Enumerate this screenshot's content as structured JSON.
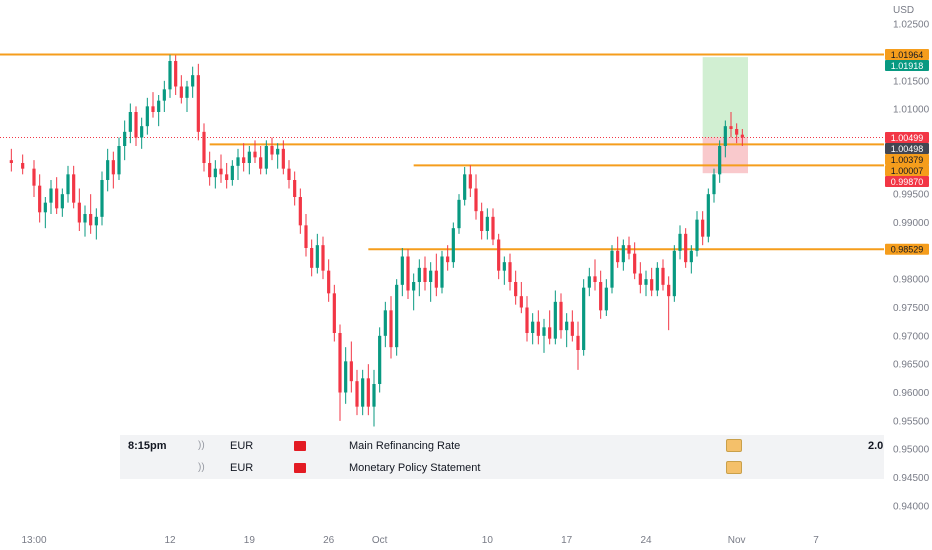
{
  "chart_data": {
    "type": "candlestick",
    "currency_label": "USD",
    "y_ticks": [
      "1.02500",
      "1.02000",
      "1.01500",
      "1.01000",
      "1.00500",
      "1.00000",
      "0.99500",
      "0.99000",
      "0.98500",
      "0.98000",
      "0.97500",
      "0.97000",
      "0.96500",
      "0.96000",
      "0.95500",
      "0.95000",
      "0.94500",
      "0.94000"
    ],
    "ylim": [
      0.9375,
      1.0275
    ],
    "x_ticks": [
      {
        "label": "13:00",
        "x": 0
      },
      {
        "label": "12",
        "x": 12
      },
      {
        "label": "19",
        "x": 19
      },
      {
        "label": "26",
        "x": 26
      },
      {
        "label": "Oct",
        "x": 30.5
      },
      {
        "label": "10",
        "x": 40
      },
      {
        "label": "17",
        "x": 47
      },
      {
        "label": "24",
        "x": 54
      },
      {
        "label": "Nov",
        "x": 62
      },
      {
        "label": "7",
        "x": 69
      }
    ],
    "xlim": [
      -3,
      75
    ],
    "horizontal_lines": [
      {
        "value": 1.01964,
        "x_start": -3,
        "color": "#f59d1c"
      },
      {
        "value": 1.00379,
        "x_start": 15.5,
        "color": "#f59d1c"
      },
      {
        "value": 1.00007,
        "x_start": 33.5,
        "color": "#f59d1c"
      },
      {
        "value": 0.98529,
        "x_start": 29.5,
        "color": "#f59d1c"
      }
    ],
    "current_price_line": {
      "value": 1.00499,
      "color": "#f23645"
    },
    "position_box": {
      "x_start": 59,
      "x_end": 63,
      "entry": 1.00499,
      "target": 1.01918,
      "stop": 0.9987
    },
    "price_tags": [
      {
        "label": "1.01964",
        "value": 1.01964,
        "bg": "#f59d1c",
        "fg": "#131722"
      },
      {
        "label": "1.01918",
        "value": 1.01918,
        "bg": "#089981",
        "fg": "#ffffff"
      },
      {
        "label": "1.00499",
        "value": 1.00499,
        "bg": "#f23645",
        "fg": "#ffffff"
      },
      {
        "label": "1.00498",
        "value": 1.00498,
        "bg": "#434651",
        "fg": "#ffffff"
      },
      {
        "label": "1.00379",
        "value": 1.00379,
        "bg": "#f59d1c",
        "fg": "#131722"
      },
      {
        "label": "1.00007",
        "value": 1.00007,
        "bg": "#f59d1c",
        "fg": "#131722"
      },
      {
        "label": "0.99870",
        "value": 0.9987,
        "bg": "#f23645",
        "fg": "#ffffff"
      },
      {
        "label": "0.98529",
        "value": 0.98529,
        "bg": "#f59d1c",
        "fg": "#131722"
      }
    ],
    "colors": {
      "up": "#089981",
      "down": "#f23645",
      "level": "#f59d1c",
      "target_zone": "#d1efd2",
      "stop_zone": "#f9c9cc"
    },
    "candles": [
      {
        "x": -2.0,
        "o": 1.001,
        "h": 1.003,
        "l": 0.999,
        "c": 1.0005
      },
      {
        "x": -1.0,
        "o": 1.0005,
        "h": 1.002,
        "l": 0.9985,
        "c": 0.9995
      },
      {
        "x": 0.0,
        "o": 0.9995,
        "h": 1.001,
        "l": 0.9945,
        "c": 0.9965
      },
      {
        "x": 0.5,
        "o": 0.9965,
        "h": 0.9985,
        "l": 0.99,
        "c": 0.9918
      },
      {
        "x": 1.0,
        "o": 0.9918,
        "h": 0.9945,
        "l": 0.989,
        "c": 0.9935
      },
      {
        "x": 1.5,
        "o": 0.9935,
        "h": 0.9975,
        "l": 0.9915,
        "c": 0.996
      },
      {
        "x": 2.0,
        "o": 0.996,
        "h": 0.998,
        "l": 0.9915,
        "c": 0.9925
      },
      {
        "x": 2.5,
        "o": 0.9925,
        "h": 0.996,
        "l": 0.991,
        "c": 0.995
      },
      {
        "x": 3.0,
        "o": 0.995,
        "h": 1.0,
        "l": 0.9935,
        "c": 0.9985
      },
      {
        "x": 3.5,
        "o": 0.9985,
        "h": 1.0,
        "l": 0.9925,
        "c": 0.9935
      },
      {
        "x": 4.0,
        "o": 0.9935,
        "h": 0.996,
        "l": 0.9885,
        "c": 0.99
      },
      {
        "x": 4.5,
        "o": 0.99,
        "h": 0.993,
        "l": 0.9875,
        "c": 0.9915
      },
      {
        "x": 5.0,
        "o": 0.9915,
        "h": 0.995,
        "l": 0.988,
        "c": 0.9895
      },
      {
        "x": 5.5,
        "o": 0.9895,
        "h": 0.9925,
        "l": 0.987,
        "c": 0.991
      },
      {
        "x": 6.0,
        "o": 0.991,
        "h": 0.999,
        "l": 0.9895,
        "c": 0.9975
      },
      {
        "x": 6.5,
        "o": 0.9975,
        "h": 1.003,
        "l": 0.9955,
        "c": 1.001
      },
      {
        "x": 7.0,
        "o": 1.001,
        "h": 1.0025,
        "l": 0.996,
        "c": 0.9985
      },
      {
        "x": 7.5,
        "o": 0.9985,
        "h": 1.005,
        "l": 0.9975,
        "c": 1.0035
      },
      {
        "x": 8.0,
        "o": 1.0035,
        "h": 1.008,
        "l": 1.001,
        "c": 1.006
      },
      {
        "x": 8.5,
        "o": 1.006,
        "h": 1.011,
        "l": 1.004,
        "c": 1.0095
      },
      {
        "x": 9.0,
        "o": 1.0095,
        "h": 1.0105,
        "l": 1.0035,
        "c": 1.005
      },
      {
        "x": 9.5,
        "o": 1.005,
        "h": 1.0085,
        "l": 1.003,
        "c": 1.007
      },
      {
        "x": 10.0,
        "o": 1.007,
        "h": 1.012,
        "l": 1.0055,
        "c": 1.0105
      },
      {
        "x": 10.5,
        "o": 1.0105,
        "h": 1.013,
        "l": 1.0085,
        "c": 1.0095
      },
      {
        "x": 11.0,
        "o": 1.0095,
        "h": 1.0125,
        "l": 1.007,
        "c": 1.0115
      },
      {
        "x": 11.5,
        "o": 1.0115,
        "h": 1.015,
        "l": 1.0095,
        "c": 1.0135
      },
      {
        "x": 12.0,
        "o": 1.0135,
        "h": 1.0196,
        "l": 1.012,
        "c": 1.0185
      },
      {
        "x": 12.5,
        "o": 1.0185,
        "h": 1.0195,
        "l": 1.0125,
        "c": 1.014
      },
      {
        "x": 13.0,
        "o": 1.014,
        "h": 1.016,
        "l": 1.011,
        "c": 1.012
      },
      {
        "x": 13.5,
        "o": 1.012,
        "h": 1.015,
        "l": 1.0095,
        "c": 1.014
      },
      {
        "x": 14.0,
        "o": 1.014,
        "h": 1.0175,
        "l": 1.012,
        "c": 1.016
      },
      {
        "x": 14.5,
        "o": 1.016,
        "h": 1.018,
        "l": 1.0045,
        "c": 1.006
      },
      {
        "x": 15.0,
        "o": 1.006,
        "h": 1.0075,
        "l": 0.999,
        "c": 1.0005
      },
      {
        "x": 15.5,
        "o": 1.0005,
        "h": 1.0025,
        "l": 0.9965,
        "c": 0.998
      },
      {
        "x": 16.0,
        "o": 0.998,
        "h": 1.001,
        "l": 0.996,
        "c": 0.9995
      },
      {
        "x": 16.5,
        "o": 0.9995,
        "h": 1.002,
        "l": 0.997,
        "c": 0.9985
      },
      {
        "x": 17.0,
        "o": 0.9985,
        "h": 1.0005,
        "l": 0.996,
        "c": 0.9975
      },
      {
        "x": 17.5,
        "o": 0.9975,
        "h": 1.001,
        "l": 0.9965,
        "c": 1.0
      },
      {
        "x": 18.0,
        "o": 1.0,
        "h": 1.003,
        "l": 0.9975,
        "c": 1.0015
      },
      {
        "x": 18.5,
        "o": 1.0015,
        "h": 1.004,
        "l": 0.999,
        "c": 1.0005
      },
      {
        "x": 19.0,
        "o": 1.0005,
        "h": 1.0035,
        "l": 0.9985,
        "c": 1.0025
      },
      {
        "x": 19.5,
        "o": 1.0025,
        "h": 1.0045,
        "l": 1.0005,
        "c": 1.0015
      },
      {
        "x": 20.0,
        "o": 1.0015,
        "h": 1.0035,
        "l": 0.9985,
        "c": 0.9995
      },
      {
        "x": 20.5,
        "o": 0.9995,
        "h": 1.0045,
        "l": 0.9985,
        "c": 1.0035
      },
      {
        "x": 21.0,
        "o": 1.0035,
        "h": 1.005,
        "l": 1.001,
        "c": 1.002
      },
      {
        "x": 21.5,
        "o": 1.002,
        "h": 1.004,
        "l": 0.9995,
        "c": 1.003
      },
      {
        "x": 22.0,
        "o": 1.003,
        "h": 1.0045,
        "l": 0.9985,
        "c": 0.9995
      },
      {
        "x": 22.5,
        "o": 0.9995,
        "h": 1.001,
        "l": 0.996,
        "c": 0.9975
      },
      {
        "x": 23.0,
        "o": 0.9975,
        "h": 0.999,
        "l": 0.993,
        "c": 0.9945
      },
      {
        "x": 23.5,
        "o": 0.9945,
        "h": 0.996,
        "l": 0.988,
        "c": 0.9895
      },
      {
        "x": 24.0,
        "o": 0.9895,
        "h": 0.9915,
        "l": 0.984,
        "c": 0.9855
      },
      {
        "x": 24.5,
        "o": 0.9855,
        "h": 0.987,
        "l": 0.9805,
        "c": 0.982
      },
      {
        "x": 25.0,
        "o": 0.982,
        "h": 0.988,
        "l": 0.981,
        "c": 0.986
      },
      {
        "x": 25.5,
        "o": 0.986,
        "h": 0.9875,
        "l": 0.98,
        "c": 0.9815
      },
      {
        "x": 26.0,
        "o": 0.9815,
        "h": 0.9835,
        "l": 0.976,
        "c": 0.9775
      },
      {
        "x": 26.5,
        "o": 0.9775,
        "h": 0.979,
        "l": 0.969,
        "c": 0.9705
      },
      {
        "x": 27.0,
        "o": 0.9705,
        "h": 0.972,
        "l": 0.955,
        "c": 0.96
      },
      {
        "x": 27.5,
        "o": 0.96,
        "h": 0.968,
        "l": 0.958,
        "c": 0.9655
      },
      {
        "x": 28.0,
        "o": 0.9655,
        "h": 0.969,
        "l": 0.96,
        "c": 0.962
      },
      {
        "x": 28.5,
        "o": 0.962,
        "h": 0.964,
        "l": 0.956,
        "c": 0.9575
      },
      {
        "x": 29.0,
        "o": 0.9575,
        "h": 0.964,
        "l": 0.956,
        "c": 0.9625
      },
      {
        "x": 29.5,
        "o": 0.9625,
        "h": 0.965,
        "l": 0.956,
        "c": 0.9575
      },
      {
        "x": 30.0,
        "o": 0.9575,
        "h": 0.964,
        "l": 0.954,
        "c": 0.9615
      },
      {
        "x": 30.5,
        "o": 0.9615,
        "h": 0.9715,
        "l": 0.96,
        "c": 0.97
      },
      {
        "x": 31.0,
        "o": 0.97,
        "h": 0.976,
        "l": 0.968,
        "c": 0.9745
      },
      {
        "x": 31.5,
        "o": 0.9745,
        "h": 0.977,
        "l": 0.966,
        "c": 0.968
      },
      {
        "x": 32.0,
        "o": 0.968,
        "h": 0.98,
        "l": 0.9665,
        "c": 0.979
      },
      {
        "x": 32.5,
        "o": 0.979,
        "h": 0.9855,
        "l": 0.977,
        "c": 0.984
      },
      {
        "x": 33.0,
        "o": 0.984,
        "h": 0.9853,
        "l": 0.9765,
        "c": 0.978
      },
      {
        "x": 33.5,
        "o": 0.978,
        "h": 0.981,
        "l": 0.9745,
        "c": 0.9795
      },
      {
        "x": 34.0,
        "o": 0.9795,
        "h": 0.9835,
        "l": 0.977,
        "c": 0.982
      },
      {
        "x": 34.5,
        "o": 0.982,
        "h": 0.984,
        "l": 0.978,
        "c": 0.9795
      },
      {
        "x": 35.0,
        "o": 0.9795,
        "h": 0.983,
        "l": 0.976,
        "c": 0.9815
      },
      {
        "x": 35.5,
        "o": 0.9815,
        "h": 0.9845,
        "l": 0.977,
        "c": 0.9785
      },
      {
        "x": 36.0,
        "o": 0.9785,
        "h": 0.985,
        "l": 0.9775,
        "c": 0.984
      },
      {
        "x": 36.5,
        "o": 0.984,
        "h": 0.986,
        "l": 0.9815,
        "c": 0.983
      },
      {
        "x": 37.0,
        "o": 0.983,
        "h": 0.99,
        "l": 0.982,
        "c": 0.989
      },
      {
        "x": 37.5,
        "o": 0.989,
        "h": 0.995,
        "l": 0.988,
        "c": 0.994
      },
      {
        "x": 38.0,
        "o": 0.994,
        "h": 0.9998,
        "l": 0.993,
        "c": 0.9985
      },
      {
        "x": 38.5,
        "o": 0.9985,
        "h": 1.0001,
        "l": 0.9945,
        "c": 0.996
      },
      {
        "x": 39.0,
        "o": 0.996,
        "h": 0.9985,
        "l": 0.9905,
        "c": 0.992
      },
      {
        "x": 39.5,
        "o": 0.992,
        "h": 0.9935,
        "l": 0.987,
        "c": 0.9885
      },
      {
        "x": 40.0,
        "o": 0.9885,
        "h": 0.9925,
        "l": 0.987,
        "c": 0.991
      },
      {
        "x": 40.5,
        "o": 0.991,
        "h": 0.9925,
        "l": 0.986,
        "c": 0.987
      },
      {
        "x": 41.0,
        "o": 0.987,
        "h": 0.988,
        "l": 0.98,
        "c": 0.9815
      },
      {
        "x": 41.5,
        "o": 0.9815,
        "h": 0.984,
        "l": 0.979,
        "c": 0.983
      },
      {
        "x": 42.0,
        "o": 0.983,
        "h": 0.9845,
        "l": 0.978,
        "c": 0.9795
      },
      {
        "x": 42.5,
        "o": 0.9795,
        "h": 0.9815,
        "l": 0.9755,
        "c": 0.977
      },
      {
        "x": 43.0,
        "o": 0.977,
        "h": 0.9795,
        "l": 0.974,
        "c": 0.975
      },
      {
        "x": 43.5,
        "o": 0.975,
        "h": 0.977,
        "l": 0.969,
        "c": 0.9705
      },
      {
        "x": 44.0,
        "o": 0.9705,
        "h": 0.974,
        "l": 0.9685,
        "c": 0.9725
      },
      {
        "x": 44.5,
        "o": 0.9725,
        "h": 0.9745,
        "l": 0.9685,
        "c": 0.97
      },
      {
        "x": 45.0,
        "o": 0.97,
        "h": 0.973,
        "l": 0.967,
        "c": 0.9715
      },
      {
        "x": 45.5,
        "o": 0.9715,
        "h": 0.9745,
        "l": 0.9685,
        "c": 0.9695
      },
      {
        "x": 46.0,
        "o": 0.9695,
        "h": 0.978,
        "l": 0.9685,
        "c": 0.976
      },
      {
        "x": 46.5,
        "o": 0.976,
        "h": 0.9775,
        "l": 0.9695,
        "c": 0.971
      },
      {
        "x": 47.0,
        "o": 0.971,
        "h": 0.974,
        "l": 0.968,
        "c": 0.9725
      },
      {
        "x": 47.5,
        "o": 0.9725,
        "h": 0.9745,
        "l": 0.969,
        "c": 0.97
      },
      {
        "x": 48.0,
        "o": 0.97,
        "h": 0.9725,
        "l": 0.964,
        "c": 0.9675
      },
      {
        "x": 48.5,
        "o": 0.9675,
        "h": 0.98,
        "l": 0.9665,
        "c": 0.9785
      },
      {
        "x": 49.0,
        "o": 0.9785,
        "h": 0.982,
        "l": 0.977,
        "c": 0.9805
      },
      {
        "x": 49.5,
        "o": 0.9805,
        "h": 0.9835,
        "l": 0.978,
        "c": 0.9795
      },
      {
        "x": 50.0,
        "o": 0.9795,
        "h": 0.9815,
        "l": 0.973,
        "c": 0.9745
      },
      {
        "x": 50.5,
        "o": 0.9745,
        "h": 0.98,
        "l": 0.9735,
        "c": 0.9785
      },
      {
        "x": 51.0,
        "o": 0.9785,
        "h": 0.986,
        "l": 0.9775,
        "c": 0.985
      },
      {
        "x": 51.5,
        "o": 0.985,
        "h": 0.9875,
        "l": 0.982,
        "c": 0.983
      },
      {
        "x": 52.0,
        "o": 0.983,
        "h": 0.987,
        "l": 0.9815,
        "c": 0.986
      },
      {
        "x": 52.5,
        "o": 0.986,
        "h": 0.9875,
        "l": 0.9835,
        "c": 0.9845
      },
      {
        "x": 53.0,
        "o": 0.9845,
        "h": 0.9865,
        "l": 0.98,
        "c": 0.981
      },
      {
        "x": 53.5,
        "o": 0.981,
        "h": 0.983,
        "l": 0.9775,
        "c": 0.979
      },
      {
        "x": 54.0,
        "o": 0.979,
        "h": 0.9815,
        "l": 0.977,
        "c": 0.98
      },
      {
        "x": 54.5,
        "o": 0.98,
        "h": 0.982,
        "l": 0.977,
        "c": 0.978
      },
      {
        "x": 55.0,
        "o": 0.978,
        "h": 0.983,
        "l": 0.977,
        "c": 0.982
      },
      {
        "x": 55.5,
        "o": 0.982,
        "h": 0.9835,
        "l": 0.978,
        "c": 0.979
      },
      {
        "x": 56.0,
        "o": 0.979,
        "h": 0.9805,
        "l": 0.971,
        "c": 0.977
      },
      {
        "x": 56.5,
        "o": 0.977,
        "h": 0.986,
        "l": 0.976,
        "c": 0.985
      },
      {
        "x": 57.0,
        "o": 0.985,
        "h": 0.9895,
        "l": 0.9835,
        "c": 0.988
      },
      {
        "x": 57.5,
        "o": 0.988,
        "h": 0.989,
        "l": 0.982,
        "c": 0.983
      },
      {
        "x": 58.0,
        "o": 0.983,
        "h": 0.986,
        "l": 0.981,
        "c": 0.985
      },
      {
        "x": 58.5,
        "o": 0.985,
        "h": 0.992,
        "l": 0.984,
        "c": 0.9905
      },
      {
        "x": 59.0,
        "o": 0.9905,
        "h": 0.992,
        "l": 0.986,
        "c": 0.9875
      },
      {
        "x": 59.5,
        "o": 0.9875,
        "h": 0.996,
        "l": 0.9865,
        "c": 0.995
      },
      {
        "x": 60.0,
        "o": 0.995,
        "h": 0.9995,
        "l": 0.9935,
        "c": 0.9985
      },
      {
        "x": 60.5,
        "o": 0.9985,
        "h": 1.0045,
        "l": 0.997,
        "c": 1.0035
      },
      {
        "x": 61.0,
        "o": 1.0035,
        "h": 1.008,
        "l": 1.0015,
        "c": 1.007
      },
      {
        "x": 61.5,
        "o": 1.007,
        "h": 1.0095,
        "l": 1.005,
        "c": 1.0065
      },
      {
        "x": 62.0,
        "o": 1.0065,
        "h": 1.0075,
        "l": 1.004,
        "c": 1.0055
      },
      {
        "x": 62.5,
        "o": 1.0055,
        "h": 1.0065,
        "l": 1.0035,
        "c": 1.005
      }
    ]
  },
  "events": [
    {
      "time": "8:15pm",
      "sound": "))",
      "currency": "EUR",
      "name": "Main Refinancing Rate",
      "value": "2.0"
    },
    {
      "time": "",
      "sound": "))",
      "currency": "EUR",
      "name": "Monetary Policy Statement",
      "value": ""
    }
  ]
}
